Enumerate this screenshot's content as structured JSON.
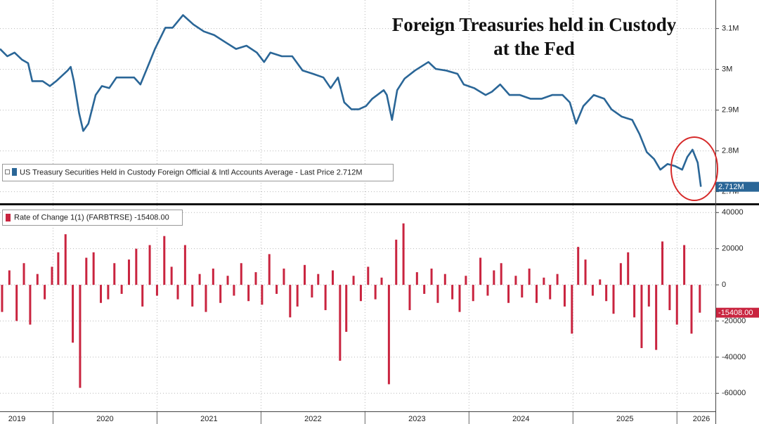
{
  "chart_data": [
    {
      "type": "line",
      "title": [
        "Foreign Treasuries held in Custody",
        "at the Fed"
      ],
      "xlim": [
        2019.49,
        2026.37
      ],
      "ylim": [
        2.67,
        3.17
      ],
      "yticks": [
        {
          "value": 2.7,
          "label": "2.7M"
        },
        {
          "value": 2.8,
          "label": "2.8M"
        },
        {
          "value": 2.9,
          "label": "2.9M"
        },
        {
          "value": 3,
          "label": "3M"
        },
        {
          "value": 3.1,
          "label": "3.1M"
        }
      ],
      "grid": true,
      "x": [
        2019.49,
        2019.56,
        2019.63,
        2019.7,
        2019.76,
        2019.8,
        2019.9,
        2019.97,
        2020.03,
        2020.14,
        2020.17,
        2020.2,
        2020.25,
        2020.29,
        2020.34,
        2020.41,
        2020.47,
        2020.54,
        2020.61,
        2020.71,
        2020.78,
        2020.84,
        2020.91,
        2020.98,
        2021.08,
        2021.15,
        2021.25,
        2021.35,
        2021.45,
        2021.55,
        2021.66,
        2021.76,
        2021.86,
        2021.96,
        2022.03,
        2022.09,
        2022.2,
        2022.3,
        2022.4,
        2022.5,
        2022.6,
        2022.67,
        2022.74,
        2022.8,
        2022.87,
        2022.94,
        2023.01,
        2023.07,
        2023.18,
        2023.21,
        2023.26,
        2023.31,
        2023.38,
        2023.48,
        2023.61,
        2023.68,
        2023.78,
        2023.89,
        2023.95,
        2024.05,
        2024.16,
        2024.22,
        2024.3,
        2024.39,
        2024.49,
        2024.59,
        2024.7,
        2024.8,
        2024.9,
        2024.97,
        2025.03,
        2025.1,
        2025.2,
        2025.3,
        2025.37,
        2025.47,
        2025.57,
        2025.64,
        2025.71,
        2025.78,
        2025.84,
        2025.91,
        2025.98,
        2026.05,
        2026.1,
        2026.15,
        2026.2,
        2026.23
      ],
      "series": [
        {
          "name": "US Treasury Securities Held in Custody Foreign Official & Intl Accounts Average - Last Price 2.712M",
          "color": "#2a6697",
          "values": [
            3.05,
            3.032,
            3.041,
            3.024,
            3.015,
            2.971,
            2.971,
            2.959,
            2.971,
            2.997,
            3.006,
            2.971,
            2.893,
            2.849,
            2.867,
            2.937,
            2.959,
            2.954,
            2.98,
            2.98,
            2.98,
            2.963,
            3.006,
            3.05,
            3.102,
            3.102,
            3.133,
            3.11,
            3.093,
            3.084,
            3.066,
            3.05,
            3.058,
            3.041,
            3.018,
            3.041,
            3.032,
            3.032,
            2.997,
            2.989,
            2.98,
            2.954,
            2.98,
            2.919,
            2.902,
            2.902,
            2.91,
            2.928,
            2.949,
            2.937,
            2.876,
            2.949,
            2.977,
            2.997,
            3.018,
            3.001,
            2.997,
            2.989,
            2.963,
            2.954,
            2.937,
            2.945,
            2.963,
            2.937,
            2.937,
            2.928,
            2.928,
            2.937,
            2.937,
            2.919,
            2.867,
            2.91,
            2.937,
            2.928,
            2.902,
            2.884,
            2.876,
            2.841,
            2.797,
            2.78,
            2.754,
            2.768,
            2.763,
            2.754,
            2.785,
            2.803,
            2.771,
            2.712
          ]
        }
      ],
      "last_tag": {
        "value": 2.712,
        "label": "2.712M"
      }
    },
    {
      "type": "bar",
      "xlim": [
        2019.49,
        2026.37
      ],
      "ylim": [
        -70000,
        44000
      ],
      "yticks": [
        -60000,
        -40000,
        -20000,
        0,
        20000,
        40000
      ],
      "xticks": [
        2019,
        2020,
        2021,
        2022,
        2023,
        2024,
        2025,
        2026
      ],
      "grid": true,
      "x": [
        2019.51,
        2019.58,
        2019.65,
        2019.72,
        2019.78,
        2019.85,
        2019.92,
        2019.99,
        2020.05,
        2020.12,
        2020.19,
        2020.26,
        2020.32,
        2020.39,
        2020.46,
        2020.53,
        2020.59,
        2020.66,
        2020.73,
        2020.8,
        2020.86,
        2020.93,
        2021.0,
        2021.07,
        2021.14,
        2021.2,
        2021.27,
        2021.34,
        2021.41,
        2021.47,
        2021.54,
        2021.61,
        2021.68,
        2021.74,
        2021.81,
        2021.88,
        2021.95,
        2022.01,
        2022.08,
        2022.15,
        2022.22,
        2022.28,
        2022.35,
        2022.42,
        2022.49,
        2022.55,
        2022.62,
        2022.69,
        2022.76,
        2022.82,
        2022.89,
        2022.96,
        2023.03,
        2023.1,
        2023.16,
        2023.23,
        2023.3,
        2023.37,
        2023.43,
        2023.5,
        2023.57,
        2023.64,
        2023.7,
        2023.77,
        2023.84,
        2023.91,
        2023.97,
        2024.04,
        2024.11,
        2024.18,
        2024.24,
        2024.31,
        2024.38,
        2024.45,
        2024.51,
        2024.58,
        2024.65,
        2024.72,
        2024.78,
        2024.85,
        2024.92,
        2024.99,
        2025.05,
        2025.12,
        2025.19,
        2025.26,
        2025.32,
        2025.39,
        2025.46,
        2025.53,
        2025.59,
        2025.66,
        2025.73,
        2025.8,
        2025.86,
        2025.93,
        2026.0,
        2026.07,
        2026.14,
        2026.22
      ],
      "series": [
        {
          "name": "Rate of Change 1(1) (FARBTRSE) -15408.00",
          "color": "#c9243f",
          "values": [
            -15000,
            8000,
            -20000,
            12000,
            -22000,
            6000,
            -8000,
            10000,
            18000,
            28000,
            -32000,
            -57000,
            15000,
            18000,
            -10000,
            -8000,
            12000,
            -5000,
            14000,
            20000,
            -12000,
            22000,
            -6000,
            27000,
            10000,
            -8000,
            22000,
            -12000,
            6000,
            -15000,
            9000,
            -10000,
            5000,
            -6000,
            12000,
            -9000,
            7000,
            -11000,
            17000,
            -5000,
            9000,
            -18000,
            -12000,
            11000,
            -7000,
            6000,
            -14000,
            8000,
            -42000,
            -26000,
            5000,
            -9000,
            10000,
            -8000,
            4000,
            -55000,
            25000,
            34000,
            -14000,
            7000,
            -5000,
            9000,
            -10000,
            6000,
            -8000,
            -15000,
            5000,
            -9000,
            15000,
            -6000,
            8000,
            12000,
            -10000,
            5000,
            -7000,
            9000,
            -10000,
            4000,
            -8000,
            6000,
            -12000,
            -27000,
            21000,
            14000,
            -6000,
            3000,
            -9000,
            -16000,
            12000,
            18000,
            -18000,
            -35000,
            -12000,
            -36000,
            24000,
            -14000,
            -22000,
            22000,
            -27000,
            -15408
          ]
        }
      ],
      "last_tag": {
        "value": -15408,
        "label": "-15408.00"
      }
    }
  ]
}
